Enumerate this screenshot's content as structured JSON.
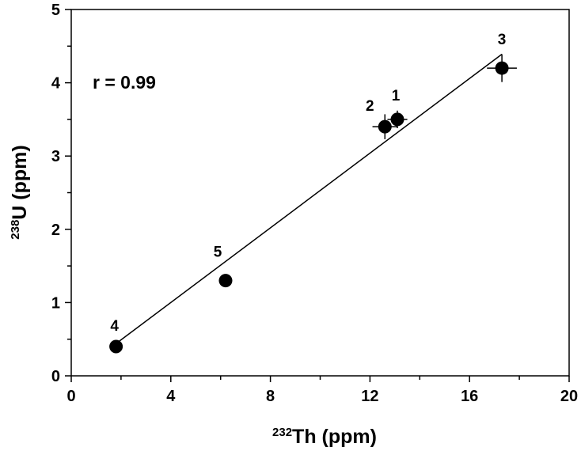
{
  "chart_data": {
    "type": "scatter",
    "x_axis": {
      "label_sup": "232",
      "label_main": "Th (ppm)",
      "lim": [
        0,
        20
      ],
      "major_ticks": [
        0,
        4,
        8,
        12,
        16,
        20
      ],
      "tick_labels": [
        "0",
        "4",
        "8",
        "12",
        "16",
        "20"
      ],
      "minor_step": 2
    },
    "y_axis": {
      "label_sup": "238",
      "label_main": "U (ppm)",
      "lim": [
        0,
        5
      ],
      "major_ticks": [
        0,
        1,
        2,
        3,
        4,
        5
      ],
      "tick_labels": [
        "0",
        "1",
        "2",
        "3",
        "4",
        "5"
      ],
      "minor_step": 0.5
    },
    "annotation": "r = 0.99",
    "grid": false,
    "legend": "none",
    "points": [
      {
        "label": "1",
        "x": 13.1,
        "y": 3.5,
        "x_err": 0.4,
        "y_err": 0.12
      },
      {
        "label": "2",
        "x": 12.6,
        "y": 3.4,
        "x_err": 0.5,
        "y_err": 0.17
      },
      {
        "label": "3",
        "x": 17.3,
        "y": 4.2,
        "x_err": 0.6,
        "y_err": 0.19
      },
      {
        "label": "4",
        "x": 1.8,
        "y": 0.4,
        "x_err": 0,
        "y_err": 0
      },
      {
        "label": "5",
        "x": 6.2,
        "y": 1.3,
        "x_err": 0,
        "y_err": 0
      }
    ],
    "fit_line": {
      "x": [
        1.8,
        17.3
      ],
      "y": [
        0.44,
        4.39
      ]
    }
  }
}
